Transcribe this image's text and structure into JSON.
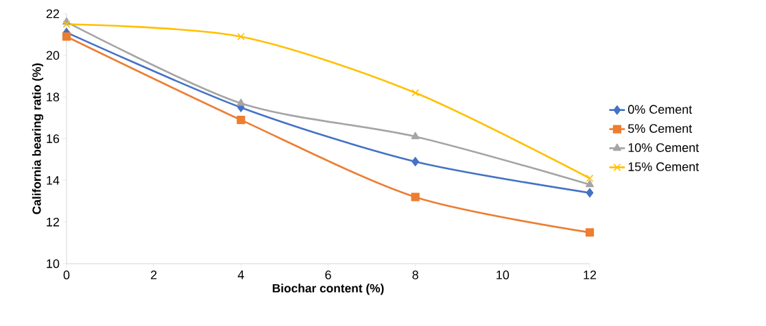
{
  "chart_data": {
    "type": "line",
    "xlabel": "Biochar content (%)",
    "ylabel": "California bearing ratio (%)",
    "x": [
      0,
      4,
      8,
      12
    ],
    "xlim": [
      0,
      12
    ],
    "xticks": [
      0,
      2,
      4,
      6,
      8,
      10,
      12
    ],
    "ylim": [
      10,
      22
    ],
    "yticks": [
      10,
      12,
      14,
      16,
      18,
      20,
      22
    ],
    "grid": false,
    "legend": "right",
    "series": [
      {
        "name": "0% Cement",
        "color": "#4472c4",
        "marker": "diamond",
        "values": [
          21.1,
          17.5,
          14.9,
          13.4
        ]
      },
      {
        "name": "5% Cement",
        "color": "#ed7d31",
        "marker": "square",
        "values": [
          20.9,
          16.9,
          13.2,
          11.5
        ]
      },
      {
        "name": "10% Cement",
        "color": "#a5a5a5",
        "marker": "triangle",
        "values": [
          21.6,
          17.7,
          16.1,
          13.8
        ]
      },
      {
        "name": "15% Cement",
        "color": "#ffc000",
        "marker": "cross",
        "values": [
          21.5,
          20.9,
          18.2,
          14.1
        ]
      }
    ]
  }
}
